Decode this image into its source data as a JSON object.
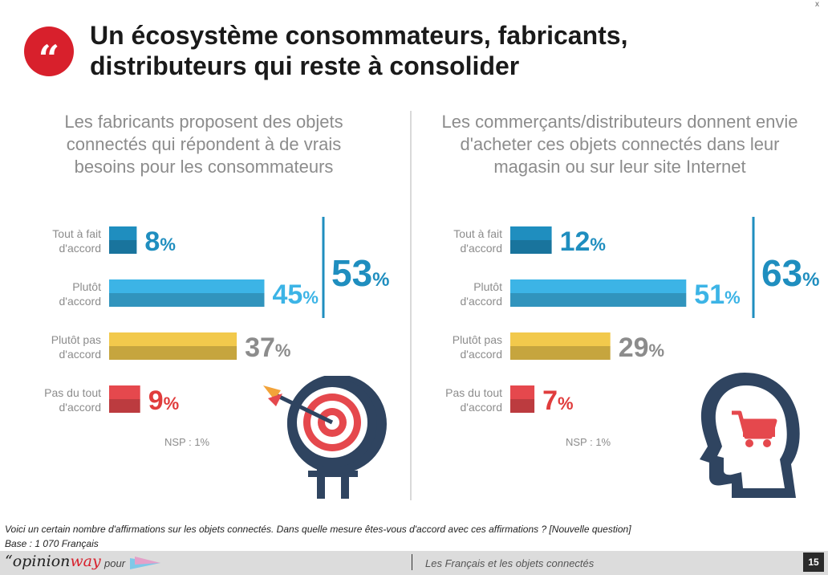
{
  "header": {
    "title": "Un écosystème consommateurs, fabricants, distributeurs qui reste à consolider",
    "close_label": "x"
  },
  "chart_data": [
    {
      "type": "bar",
      "title": "Les fabricants proposent des objets connectés qui répondent à de vrais besoins pour les consommateurs",
      "categories": [
        "Tout à fait d'accord",
        "Plutôt d'accord",
        "Plutôt pas d'accord",
        "Pas du tout d'accord"
      ],
      "values": [
        8,
        45,
        37,
        9
      ],
      "value_labels": [
        "8",
        "45",
        "37",
        "9"
      ],
      "unit": "%",
      "colors": [
        "#1f8ebf",
        "#3cb4e6",
        "#f2c94c",
        "#e5484d"
      ],
      "label_colors": [
        "#1f8ebf",
        "#3cb4e6",
        "#8c8c8c",
        "#e03c3c"
      ],
      "total_label": "53",
      "total_color": "#1f8ebf",
      "nsp": "NSP : 1%",
      "orientation": "horizontal"
    },
    {
      "type": "bar",
      "title": "Les commerçants/distributeurs donnent envie d'acheter ces objets connectés dans leur magasin ou sur leur site Internet",
      "categories": [
        "Tout à fait d'accord",
        "Plutôt d'accord",
        "Plutôt pas d'accord",
        "Pas du tout d'accord"
      ],
      "values": [
        12,
        51,
        29,
        7
      ],
      "value_labels": [
        "12",
        "51",
        "29",
        "7"
      ],
      "unit": "%",
      "colors": [
        "#1f8ebf",
        "#3cb4e6",
        "#f2c94c",
        "#e5484d"
      ],
      "label_colors": [
        "#1f8ebf",
        "#3cb4e6",
        "#8c8c8c",
        "#e03c3c"
      ],
      "total_label": "63",
      "total_color": "#1f8ebf",
      "nsp": "NSP : 1%",
      "orientation": "horizontal"
    }
  ],
  "category_label_lines": [
    [
      "Tout à fait",
      "d'accord"
    ],
    [
      "Plutôt",
      "d'accord"
    ],
    [
      "Plutôt pas",
      "d'accord"
    ],
    [
      "Pas du tout",
      "d'accord"
    ]
  ],
  "footer": {
    "question": "Voici un certain nombre d'affirmations sur les objets connectés. Dans quelle mesure êtes-vous d'accord avec ces affirmations ? [Nouvelle question]",
    "base": "Base : 1 070 Français",
    "logo_quote": "“",
    "logo_opinion": "opinion",
    "logo_way": "way",
    "pour": "pour",
    "report_title": "Les Français et les objets connectés",
    "page_number": "15"
  },
  "icons": {
    "quote": "quote-icon",
    "target": "target-icon",
    "head_cart": "head-cart-icon"
  }
}
